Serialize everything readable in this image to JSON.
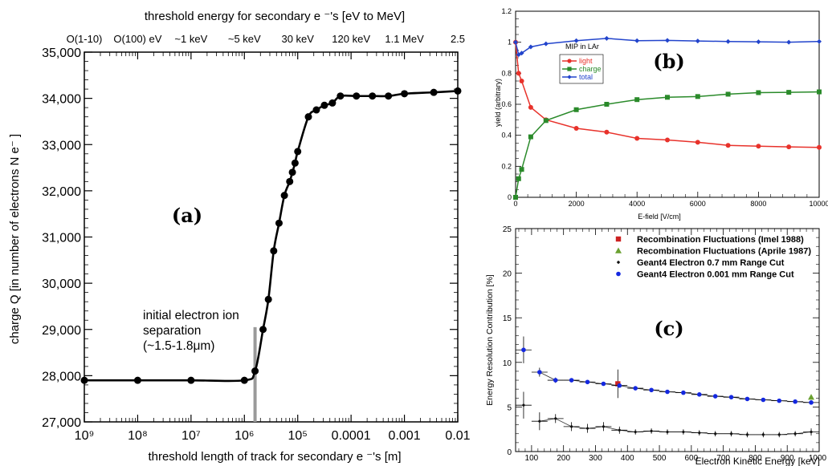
{
  "chart_data": [
    {
      "type": "line",
      "panel_label": "(a)",
      "xlabel": "threshold length of track for secondary e ⁻'s [m]",
      "top_xlabel": "threshold energy for secondary e ⁻'s [eV to MeV]",
      "ylabel": "charge Q [in number of electrons N e⁻ ]",
      "x_ticks": [
        "10⁹",
        "10⁸",
        "10⁷",
        "10⁶",
        "10⁵",
        "0.0001",
        "0.001",
        "0.01"
      ],
      "top_ticks": [
        "O(1-10)",
        "O(100) eV",
        "~1 keV",
        "~5 keV",
        "30 keV",
        "120 keV",
        "1.1 MeV",
        "2.5"
      ],
      "y_ticks": [
        "27,000",
        "28,000",
        "29,000",
        "30,000",
        "31,000",
        "32,000",
        "33,000",
        "34,000",
        "35,000"
      ],
      "ylim": [
        27000,
        35000
      ],
      "annotation": [
        "initial electron ion",
        "separation",
        "(~1.5-1.8μm)"
      ],
      "annotation_x": -5.8,
      "points": [
        [
          -9,
          27900
        ],
        [
          -8,
          27900
        ],
        [
          -7,
          27900
        ],
        [
          -6,
          27900
        ],
        [
          -5.8,
          28100
        ],
        [
          -5.65,
          29000
        ],
        [
          -5.55,
          29650
        ],
        [
          -5.45,
          30700
        ],
        [
          -5.35,
          31300
        ],
        [
          -5.25,
          31900
        ],
        [
          -5.15,
          32200
        ],
        [
          -5.1,
          32400
        ],
        [
          -5.05,
          32600
        ],
        [
          -5.0,
          32850
        ],
        [
          -4.8,
          33600
        ],
        [
          -4.65,
          33750
        ],
        [
          -4.5,
          33850
        ],
        [
          -4.35,
          33900
        ],
        [
          -4.2,
          34050
        ],
        [
          -3.9,
          34050
        ],
        [
          -3.6,
          34050
        ],
        [
          -3.3,
          34050
        ],
        [
          -3.0,
          34100
        ],
        [
          -2.45,
          34130
        ],
        [
          -2.0,
          34160
        ]
      ]
    },
    {
      "type": "line",
      "panel_label": "(b)",
      "xlabel": "E-field [V/cm]",
      "ylabel": "yield (arbitrary)",
      "xlim": [
        0,
        10000
      ],
      "ylim": [
        0,
        1.2
      ],
      "x_ticks": [
        "0",
        "2000",
        "4000",
        "6000",
        "8000",
        "10000"
      ],
      "y_ticks": [
        "0",
        "0.2",
        "0.4",
        "0.6",
        "0.8",
        "1",
        "1.2"
      ],
      "legend_title": "MIP in LAr",
      "series": [
        {
          "name": "light",
          "color": "#e8322b",
          "marker": "circle",
          "points": [
            [
              0,
              1.0
            ],
            [
              100,
              0.8
            ],
            [
              200,
              0.75
            ],
            [
              500,
              0.58
            ],
            [
              1000,
              0.5
            ],
            [
              2000,
              0.445
            ],
            [
              3000,
              0.42
            ],
            [
              4000,
              0.38
            ],
            [
              5000,
              0.37
            ],
            [
              6000,
              0.355
            ],
            [
              7000,
              0.335
            ],
            [
              8000,
              0.33
            ],
            [
              9000,
              0.325
            ],
            [
              10000,
              0.322
            ]
          ]
        },
        {
          "name": "charge",
          "color": "#2a8a2a",
          "marker": "square",
          "points": [
            [
              0,
              0
            ],
            [
              100,
              0.12
            ],
            [
              200,
              0.18
            ],
            [
              500,
              0.39
            ],
            [
              1000,
              0.495
            ],
            [
              2000,
              0.565
            ],
            [
              3000,
              0.6
            ],
            [
              4000,
              0.63
            ],
            [
              5000,
              0.645
            ],
            [
              6000,
              0.65
            ],
            [
              7000,
              0.665
            ],
            [
              8000,
              0.675
            ],
            [
              9000,
              0.677
            ],
            [
              10000,
              0.68
            ]
          ]
        },
        {
          "name": "total",
          "color": "#2244cc",
          "marker": "diamond",
          "points": [
            [
              0,
              1.0
            ],
            [
              100,
              0.92
            ],
            [
              200,
              0.93
            ],
            [
              500,
              0.97
            ],
            [
              1000,
              0.99
            ],
            [
              2000,
              1.01
            ],
            [
              3000,
              1.025
            ],
            [
              4000,
              1.01
            ],
            [
              5000,
              1.012
            ],
            [
              6000,
              1.008
            ],
            [
              7000,
              1.005
            ],
            [
              8000,
              1.003
            ],
            [
              9000,
              1.0
            ],
            [
              10000,
              1.005
            ]
          ]
        }
      ]
    },
    {
      "type": "scatter",
      "panel_label": "(c)",
      "xlabel": "Electron Kinetic Energy [keV]",
      "ylabel": "Energy Resolution Contribution [%]",
      "xlim": [
        50,
        1000
      ],
      "ylim": [
        0,
        25
      ],
      "x_ticks": [
        "100",
        "200",
        "300",
        "400",
        "500",
        "600",
        "700",
        "800",
        "900",
        "1000"
      ],
      "y_ticks": [
        "0",
        "5",
        "10",
        "15",
        "20",
        "25"
      ],
      "series": [
        {
          "name": "Recombination Fluctuations (Imel 1988)",
          "color": "#cc2222",
          "marker": "square",
          "points": [
            [
              370,
              7.6,
              1.6
            ]
          ]
        },
        {
          "name": "Recombination Fluctuations (Aprile 1987)",
          "color": "#6aa030",
          "marker": "triangle",
          "points": [
            [
              975,
              6.1,
              0
            ]
          ]
        },
        {
          "name": "Geant4 Electron 0.7 mm Range Cut",
          "color": "#111111",
          "marker": "small-diamond",
          "points": [
            [
              75,
              5.2,
              1.5
            ],
            [
              125,
              3.4,
              1.0
            ],
            [
              175,
              3.7,
              0.5
            ],
            [
              225,
              2.8,
              0.5
            ],
            [
              275,
              2.6,
              0.5
            ],
            [
              325,
              2.8,
              0.5
            ],
            [
              375,
              2.4,
              0.4
            ],
            [
              425,
              2.2,
              0.3
            ],
            [
              475,
              2.3,
              0.3
            ],
            [
              525,
              2.2,
              0.3
            ],
            [
              575,
              2.2,
              0.3
            ],
            [
              625,
              2.1,
              0.3
            ],
            [
              675,
              2.0,
              0.3
            ],
            [
              725,
              2.0,
              0.3
            ],
            [
              775,
              1.9,
              0.3
            ],
            [
              825,
              1.9,
              0.3
            ],
            [
              875,
              1.9,
              0.3
            ],
            [
              925,
              2.0,
              0.3
            ],
            [
              975,
              2.2,
              0.4
            ]
          ]
        },
        {
          "name": "Geant4 Electron 0.001 mm Range Cut",
          "color": "#1428e0",
          "marker": "circle",
          "points": [
            [
              75,
              11.4,
              1.5
            ],
            [
              125,
              8.9,
              0.5
            ],
            [
              175,
              8.0,
              0.3
            ],
            [
              225,
              8.0,
              0.2
            ],
            [
              275,
              7.8,
              0.2
            ],
            [
              325,
              7.6,
              0.2
            ],
            [
              375,
              7.4,
              0.2
            ],
            [
              425,
              7.1,
              0.2
            ],
            [
              475,
              6.9,
              0.2
            ],
            [
              525,
              6.7,
              0.2
            ],
            [
              575,
              6.6,
              0.2
            ],
            [
              625,
              6.4,
              0.2
            ],
            [
              675,
              6.2,
              0.2
            ],
            [
              725,
              6.1,
              0.2
            ],
            [
              775,
              5.9,
              0.2
            ],
            [
              825,
              5.8,
              0.2
            ],
            [
              875,
              5.7,
              0.2
            ],
            [
              925,
              5.6,
              0.2
            ],
            [
              975,
              5.5,
              0.2
            ]
          ]
        }
      ]
    }
  ]
}
